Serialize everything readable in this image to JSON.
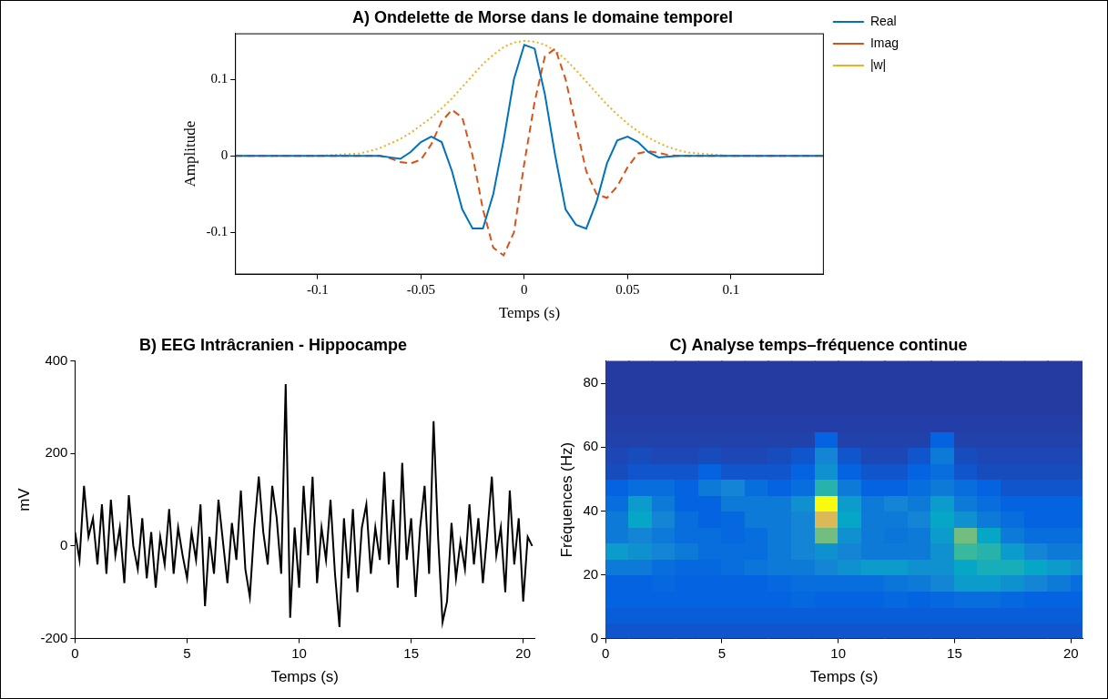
{
  "chart_data": [
    {
      "type": "line",
      "title": "A) Ondelette de Morse dans le domaine temporel",
      "x_label": "Temps (s)",
      "y_label": "Amplitude",
      "x": [
        -0.14,
        -0.1,
        -0.08,
        -0.075,
        -0.07,
        -0.065,
        -0.06,
        -0.055,
        -0.05,
        -0.045,
        -0.04,
        -0.035,
        -0.03,
        -0.025,
        -0.02,
        -0.015,
        -0.01,
        -0.005,
        0,
        0.005,
        0.01,
        0.015,
        0.02,
        0.025,
        0.03,
        0.035,
        0.04,
        0.045,
        0.05,
        0.055,
        0.06,
        0.065,
        0.07,
        0.075,
        0.08,
        0.1,
        0.145
      ],
      "series": [
        {
          "name": "Real",
          "color": "#0072bd",
          "line_style": "solid",
          "values": [
            0,
            0,
            0,
            0,
            0,
            -0.002,
            -0.004,
            0.005,
            0.018,
            0.025,
            0.018,
            -0.02,
            -0.07,
            -0.095,
            -0.095,
            -0.05,
            0.02,
            0.1,
            0.145,
            0.14,
            0.08,
            0.0,
            -0.07,
            -0.09,
            -0.095,
            -0.06,
            -0.01,
            0.02,
            0.025,
            0.018,
            0.005,
            -0.002,
            -0.001,
            0,
            0,
            0,
            0
          ]
        },
        {
          "name": "Imag",
          "color": "#d95319",
          "line_style": "dashed",
          "values": [
            0,
            0,
            0,
            0,
            0,
            -0.003,
            -0.008,
            -0.01,
            -0.005,
            0.015,
            0.045,
            0.06,
            0.05,
            0.0,
            -0.07,
            -0.12,
            -0.13,
            -0.1,
            -0.01,
            0.07,
            0.13,
            0.14,
            0.1,
            0.04,
            -0.02,
            -0.05,
            -0.055,
            -0.04,
            -0.015,
            0.003,
            0.006,
            0.004,
            0.001,
            0,
            0,
            0,
            0
          ]
        },
        {
          "name": "|w|",
          "color": "#edb120",
          "line_style": "dotted",
          "values": [
            0,
            0,
            0.003,
            0.006,
            0.01,
            0.016,
            0.022,
            0.03,
            0.04,
            0.05,
            0.062,
            0.075,
            0.09,
            0.105,
            0.12,
            0.132,
            0.142,
            0.148,
            0.15,
            0.149,
            0.145,
            0.137,
            0.126,
            0.112,
            0.097,
            0.082,
            0.067,
            0.054,
            0.042,
            0.032,
            0.024,
            0.017,
            0.011,
            0.007,
            0.004,
            0,
            0
          ]
        }
      ],
      "xlim": [
        -0.14,
        0.145
      ],
      "ylim": [
        -0.155,
        0.16
      ],
      "xticks": [
        -0.1,
        -0.05,
        0,
        0.05,
        0.1
      ],
      "yticks": [
        -0.1,
        0,
        0.1
      ],
      "legend": "right",
      "grid": false
    },
    {
      "type": "line",
      "title": "B) EEG Intrâcranien - Hippocampe",
      "x_label": "Temps (s)",
      "y_label": "mV",
      "x": [
        0,
        0.2,
        0.4,
        0.6,
        0.8,
        1,
        1.2,
        1.4,
        1.6,
        1.8,
        2,
        2.2,
        2.4,
        2.6,
        2.8,
        3,
        3.2,
        3.4,
        3.6,
        3.8,
        4,
        4.2,
        4.4,
        4.6,
        4.8,
        5,
        5.2,
        5.4,
        5.6,
        5.8,
        6,
        6.2,
        6.4,
        6.6,
        6.8,
        7,
        7.2,
        7.4,
        7.6,
        7.8,
        8,
        8.2,
        8.4,
        8.6,
        8.8,
        9,
        9.2,
        9.4,
        9.6,
        9.8,
        10,
        10.2,
        10.4,
        10.6,
        10.8,
        11,
        11.2,
        11.4,
        11.6,
        11.8,
        12,
        12.2,
        12.4,
        12.6,
        12.8,
        13,
        13.2,
        13.4,
        13.6,
        13.8,
        14,
        14.2,
        14.4,
        14.6,
        14.8,
        15,
        15.2,
        15.4,
        15.6,
        15.8,
        16,
        16.2,
        16.4,
        16.6,
        16.8,
        17,
        17.2,
        17.4,
        17.6,
        17.8,
        18,
        18.2,
        18.4,
        18.6,
        18.8,
        19,
        19.2,
        19.4,
        19.6,
        19.8,
        20,
        20.2,
        20.4
      ],
      "series": [
        {
          "name": "EEG",
          "color": "#000000",
          "line_style": "solid",
          "values": [
            30,
            -30,
            130,
            20,
            60,
            -40,
            90,
            -60,
            100,
            -20,
            40,
            -80,
            110,
            0,
            -50,
            60,
            -70,
            30,
            -90,
            20,
            -40,
            80,
            -60,
            40,
            -20,
            -70,
            30,
            -30,
            90,
            -130,
            20,
            -60,
            100,
            10,
            -80,
            50,
            -30,
            120,
            -50,
            -110,
            40,
            150,
            30,
            -40,
            130,
            60,
            -60,
            350,
            -155,
            40,
            -90,
            130,
            -20,
            150,
            -80,
            40,
            -30,
            100,
            -60,
            -175,
            60,
            -70,
            80,
            -100,
            40,
            90,
            -60,
            40,
            -30,
            160,
            -40,
            100,
            -90,
            180,
            -30,
            60,
            -110,
            40,
            130,
            -60,
            270,
            20,
            -165,
            -120,
            50,
            -70,
            10,
            -50,
            90,
            -40,
            60,
            -80,
            30,
            150,
            -20,
            40,
            -100,
            120,
            -40,
            60,
            -120,
            20,
            0
          ]
        }
      ],
      "xlim": [
        0,
        20.5
      ],
      "ylim": [
        -200,
        400
      ],
      "xticks": [
        0,
        5,
        10,
        15,
        20
      ],
      "yticks": [
        -200,
        0,
        200,
        400
      ],
      "grid": false
    },
    {
      "type": "heatmap",
      "title": "C) Analyse temps–fréquence continue",
      "x_label": "Temps (s)",
      "y_label": "Fréquences (Hz)",
      "x_bins": [
        0,
        1,
        2,
        3,
        4,
        5,
        6,
        7,
        8,
        9,
        10,
        11,
        12,
        13,
        14,
        15,
        16,
        17,
        18,
        19,
        20,
        20.5
      ],
      "y_bins": [
        0,
        5,
        10,
        15,
        20,
        25,
        30,
        35,
        40,
        45,
        50,
        55,
        60,
        65,
        70,
        75,
        80,
        85,
        87
      ],
      "cells": [
        [
          0.15,
          0.15,
          0.15,
          0.15,
          0.15,
          0.15,
          0.15,
          0.15,
          0.15,
          0.15,
          0.15,
          0.15,
          0.15,
          0.15,
          0.15,
          0.15,
          0.15,
          0.15,
          0.15,
          0.15,
          0.15
        ],
        [
          0.18,
          0.18,
          0.18,
          0.18,
          0.18,
          0.18,
          0.18,
          0.18,
          0.18,
          0.18,
          0.18,
          0.18,
          0.18,
          0.18,
          0.18,
          0.18,
          0.18,
          0.18,
          0.18,
          0.18,
          0.18
        ],
        [
          0.2,
          0.2,
          0.2,
          0.2,
          0.2,
          0.2,
          0.2,
          0.2,
          0.22,
          0.2,
          0.2,
          0.2,
          0.22,
          0.2,
          0.22,
          0.25,
          0.25,
          0.22,
          0.2,
          0.2,
          0.2
        ],
        [
          0.2,
          0.2,
          0.22,
          0.2,
          0.2,
          0.2,
          0.2,
          0.22,
          0.25,
          0.25,
          0.25,
          0.25,
          0.28,
          0.3,
          0.35,
          0.45,
          0.45,
          0.4,
          0.35,
          0.3,
          0.25
        ],
        [
          0.3,
          0.3,
          0.25,
          0.22,
          0.22,
          0.25,
          0.28,
          0.3,
          0.3,
          0.35,
          0.4,
          0.45,
          0.45,
          0.4,
          0.4,
          0.5,
          0.55,
          0.55,
          0.5,
          0.45,
          0.4
        ],
        [
          0.45,
          0.4,
          0.35,
          0.3,
          0.25,
          0.25,
          0.25,
          0.3,
          0.35,
          0.4,
          0.35,
          0.3,
          0.3,
          0.3,
          0.4,
          0.65,
          0.6,
          0.45,
          0.35,
          0.3,
          0.3
        ],
        [
          0.3,
          0.35,
          0.3,
          0.25,
          0.25,
          0.22,
          0.25,
          0.3,
          0.35,
          0.75,
          0.4,
          0.3,
          0.28,
          0.3,
          0.45,
          0.75,
          0.5,
          0.3,
          0.25,
          0.25,
          0.25
        ],
        [
          0.3,
          0.5,
          0.35,
          0.25,
          0.2,
          0.22,
          0.3,
          0.3,
          0.35,
          0.9,
          0.5,
          0.3,
          0.3,
          0.35,
          0.5,
          0.4,
          0.3,
          0.25,
          0.2,
          0.2,
          0.2
        ],
        [
          0.25,
          0.45,
          0.3,
          0.2,
          0.2,
          0.3,
          0.3,
          0.3,
          0.4,
          1.0,
          0.45,
          0.3,
          0.35,
          0.3,
          0.45,
          0.3,
          0.25,
          0.2,
          0.2,
          0.2,
          0.2
        ],
        [
          0.2,
          0.25,
          0.25,
          0.2,
          0.3,
          0.35,
          0.25,
          0.2,
          0.25,
          0.6,
          0.3,
          0.2,
          0.2,
          0.25,
          0.3,
          0.25,
          0.2,
          0.15,
          0.15,
          0.15,
          0.15
        ],
        [
          0.12,
          0.15,
          0.15,
          0.15,
          0.2,
          0.15,
          0.15,
          0.15,
          0.2,
          0.4,
          0.2,
          0.15,
          0.15,
          0.2,
          0.25,
          0.15,
          0.12,
          0.12,
          0.12,
          0.12,
          0.12
        ],
        [
          0.1,
          0.12,
          0.1,
          0.1,
          0.12,
          0.1,
          0.1,
          0.12,
          0.15,
          0.35,
          0.15,
          0.1,
          0.1,
          0.15,
          0.3,
          0.12,
          0.1,
          0.1,
          0.1,
          0.1,
          0.1
        ],
        [
          0.08,
          0.08,
          0.08,
          0.08,
          0.08,
          0.08,
          0.08,
          0.08,
          0.08,
          0.2,
          0.08,
          0.08,
          0.08,
          0.08,
          0.2,
          0.08,
          0.08,
          0.08,
          0.08,
          0.08,
          0.08
        ],
        [
          0.07,
          0.07,
          0.07,
          0.07,
          0.07,
          0.07,
          0.07,
          0.07,
          0.07,
          0.07,
          0.07,
          0.07,
          0.07,
          0.07,
          0.07,
          0.07,
          0.07,
          0.07,
          0.07,
          0.07,
          0.07
        ],
        [
          0.06,
          0.06,
          0.06,
          0.06,
          0.06,
          0.06,
          0.06,
          0.06,
          0.06,
          0.06,
          0.06,
          0.06,
          0.06,
          0.06,
          0.06,
          0.06,
          0.06,
          0.06,
          0.06,
          0.06,
          0.06
        ],
        [
          0.06,
          0.06,
          0.06,
          0.06,
          0.06,
          0.06,
          0.06,
          0.06,
          0.06,
          0.06,
          0.06,
          0.06,
          0.06,
          0.06,
          0.06,
          0.06,
          0.06,
          0.06,
          0.06,
          0.06,
          0.06
        ],
        [
          0.06,
          0.06,
          0.06,
          0.06,
          0.06,
          0.06,
          0.06,
          0.06,
          0.06,
          0.06,
          0.06,
          0.06,
          0.06,
          0.06,
          0.06,
          0.06,
          0.06,
          0.06,
          0.06,
          0.06,
          0.06
        ],
        [
          0.06,
          0.06,
          0.06,
          0.06,
          0.06,
          0.06,
          0.06,
          0.06,
          0.06,
          0.06,
          0.06,
          0.06,
          0.06,
          0.06,
          0.06,
          0.06,
          0.06,
          0.06,
          0.06,
          0.06,
          0.06
        ]
      ],
      "zlim": [
        0,
        1
      ],
      "xlim": [
        0,
        20.5
      ],
      "ylim": [
        0,
        87
      ],
      "xticks": [
        0,
        5,
        10,
        15,
        20
      ],
      "yticks": [
        0,
        20,
        40,
        60,
        80
      ],
      "grid": false
    }
  ]
}
